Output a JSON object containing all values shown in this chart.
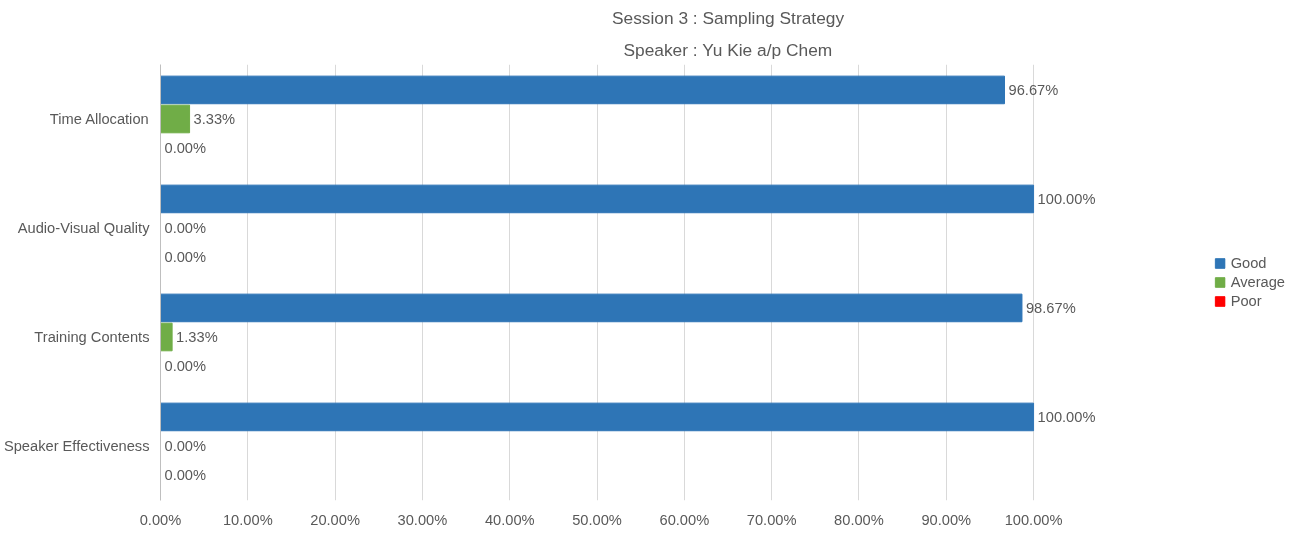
{
  "chart_data": {
    "type": "bar",
    "orientation": "horizontal",
    "title": "Session 3 : Sampling Strategy",
    "subtitle": "Speaker : Yu Kie a/p Chem",
    "categories": [
      "Time Allocation",
      "Audio-Visual Quality",
      "Training Contents",
      "Speaker Effectiveness"
    ],
    "series": [
      {
        "name": "Good",
        "color": "#2e75b6",
        "values": [
          96.67,
          100,
          98.67,
          100
        ],
        "value_labels": [
          "96.67%",
          "100.00%",
          "98.67%",
          "100.00%"
        ]
      },
      {
        "name": "Average",
        "color": "#70ad47",
        "values": [
          3.33,
          0,
          1.33,
          0
        ],
        "value_labels": [
          "3.33%",
          "0.00%",
          "1.33%",
          "0.00%"
        ]
      },
      {
        "name": "Poor",
        "color": "#ff0000",
        "values": [
          0,
          0,
          0,
          0
        ],
        "value_labels": [
          "0.00%",
          "0.00%",
          "0.00%",
          "0.00%"
        ]
      }
    ],
    "xlim": [
      0,
      100
    ],
    "xticks": [
      {
        "value": 0,
        "label": "0.00%"
      },
      {
        "value": 10,
        "label": "10.00%"
      },
      {
        "value": 20,
        "label": "20.00%"
      },
      {
        "value": 30,
        "label": "30.00%"
      },
      {
        "value": 40,
        "label": "40.00%"
      },
      {
        "value": 50,
        "label": "50.00%"
      },
      {
        "value": 60,
        "label": "60.00%"
      },
      {
        "value": 70,
        "label": "70.00%"
      },
      {
        "value": 80,
        "label": "80.00%"
      },
      {
        "value": 90,
        "label": "90.00%"
      },
      {
        "value": 100,
        "label": "100.00%"
      }
    ],
    "grid": "x",
    "legend": "right"
  }
}
